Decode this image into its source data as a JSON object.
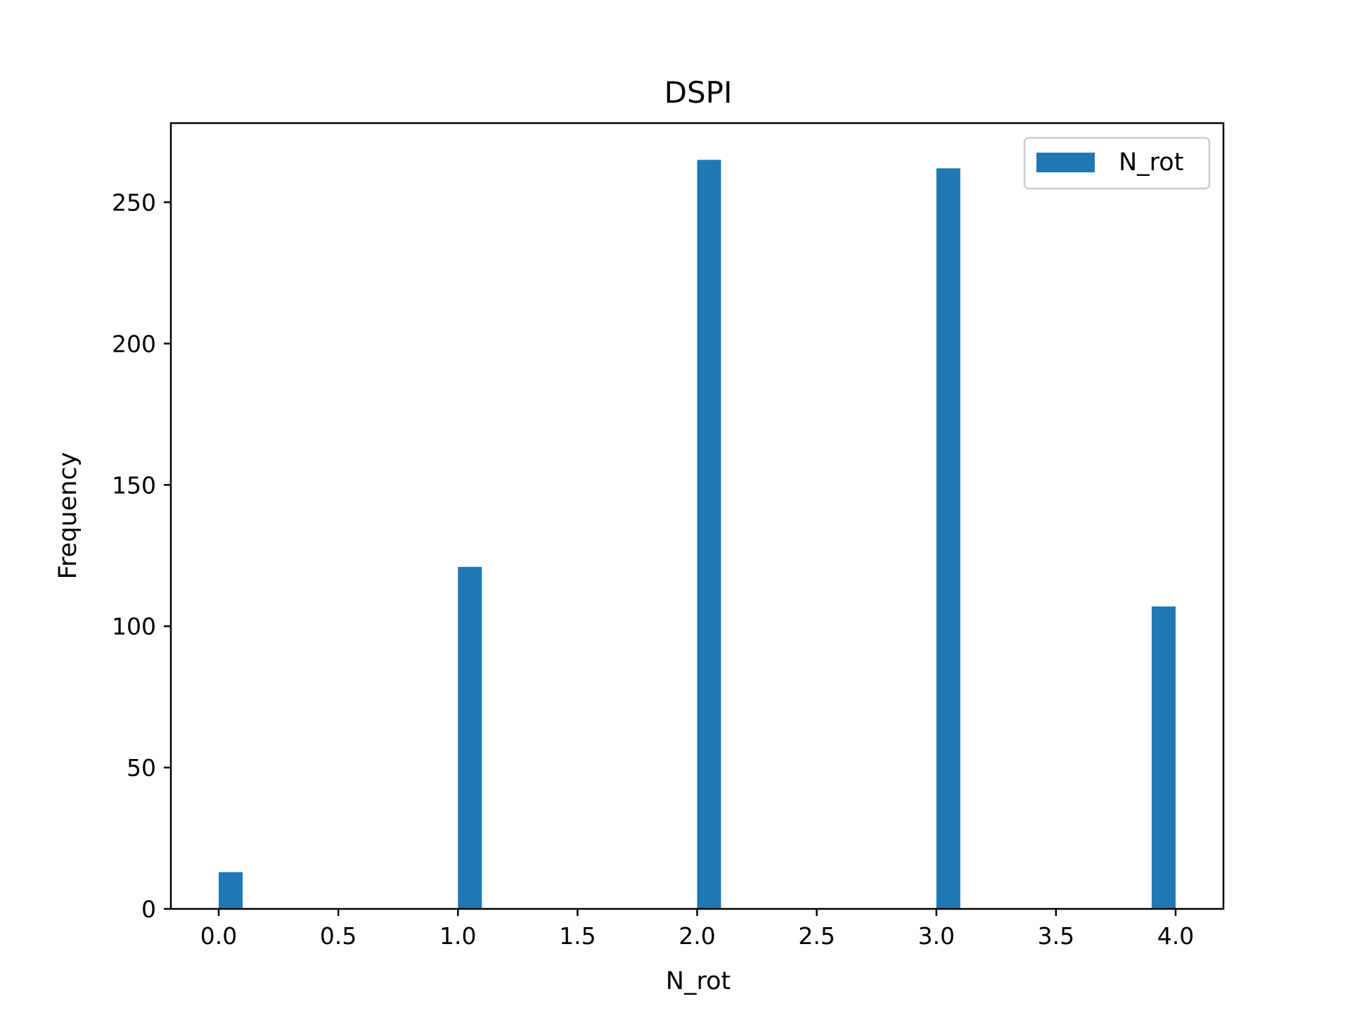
{
  "chart_data": {
    "type": "bar",
    "title": "DSPI",
    "xlabel": "N_rot",
    "ylabel": "Frequency",
    "xlim": [
      -0.2,
      4.2
    ],
    "ylim": [
      0,
      278
    ],
    "x_ticks": [
      "0.0",
      "0.5",
      "1.0",
      "1.5",
      "2.0",
      "2.5",
      "3.0",
      "3.5",
      "4.0"
    ],
    "y_ticks": [
      "0",
      "50",
      "100",
      "150",
      "200",
      "250"
    ],
    "bin_width": 0.1,
    "series": [
      {
        "name": "N_rot",
        "color": "#1f77b4",
        "bins": [
          {
            "x": 0.0,
            "value": 13
          },
          {
            "x": 1.0,
            "value": 121
          },
          {
            "x": 2.0,
            "value": 265
          },
          {
            "x": 3.0,
            "value": 262
          },
          {
            "x": 3.9,
            "value": 107
          }
        ]
      }
    ],
    "legend": {
      "position": "top-right"
    },
    "grid": false
  }
}
